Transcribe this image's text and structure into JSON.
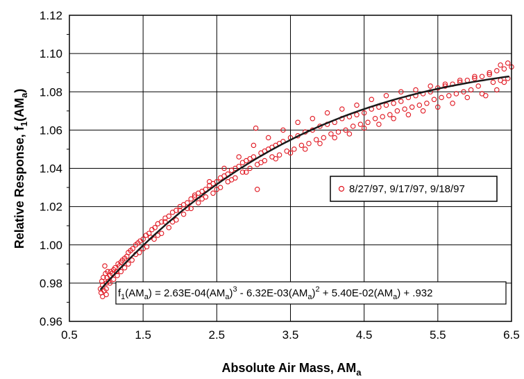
{
  "chart_data": {
    "type": "scatter",
    "xlabel": "Absolute Air Mass, AM",
    "xlabel_sub": "a",
    "ylabel": "Relative Response, f",
    "ylabel_sub1": "1",
    "ylabel_paren": "(AM",
    "ylabel_sub2": "a",
    "ylabel_close": ")",
    "xlim": [
      0.5,
      6.5
    ],
    "ylim": [
      0.96,
      1.12
    ],
    "xticks": [
      "0.5",
      "1.5",
      "2.5",
      "3.5",
      "4.5",
      "5.5",
      "6.5"
    ],
    "yticks": [
      "0.96",
      "0.98",
      "1.00",
      "1.02",
      "1.04",
      "1.06",
      "1.08",
      "1.10",
      "1.12"
    ],
    "grid": true,
    "legend": {
      "placement": "right",
      "label": "8/27/97, 9/17/97, 9/18/97",
      "marker_color": "#e0141e"
    },
    "fit": {
      "coefficients": [
        0.000263,
        -0.00632,
        0.054,
        0.932
      ],
      "equation": {
        "p1": "f",
        "s1": "1",
        "p2": "(AM",
        "s2": "a",
        "p3": ") = 2.63E-04(AM",
        "s3": "a",
        "p4": ")",
        "e1": "3",
        "p5": " - 6.32E-03(AM",
        "s4": "a",
        "p6": ")",
        "e2": "2",
        "p7": " + 5.40E-02(AM",
        "s5": "a",
        "p8": ") + .932"
      },
      "color": "#1a1a1a"
    },
    "series": [
      {
        "name": "8/27/97, 9/17/97, 9/18/97",
        "marker": "open-circle",
        "color": "#e0141e",
        "points": [
          [
            0.92,
            0.977
          ],
          [
            0.93,
            0.975
          ],
          [
            0.94,
            0.981
          ],
          [
            0.95,
            0.979
          ],
          [
            0.96,
            0.983
          ],
          [
            0.97,
            0.976
          ],
          [
            0.98,
            0.989
          ],
          [
            0.99,
            0.985
          ],
          [
            1.0,
            0.98
          ],
          [
            1.0,
            0.974
          ],
          [
            1.01,
            0.983
          ],
          [
            1.02,
            0.986
          ],
          [
            1.03,
            0.981
          ],
          [
            1.05,
            0.984
          ],
          [
            1.06,
            0.986
          ],
          [
            1.08,
            0.985
          ],
          [
            1.1,
            0.987
          ],
          [
            1.12,
            0.988
          ],
          [
            1.14,
            0.986
          ],
          [
            1.16,
            0.99
          ],
          [
            1.18,
            0.989
          ],
          [
            1.2,
            0.991
          ],
          [
            1.22,
            0.992
          ],
          [
            1.25,
            0.993
          ],
          [
            1.28,
            0.994
          ],
          [
            1.3,
            0.996
          ],
          [
            1.33,
            0.997
          ],
          [
            1.36,
            0.998
          ],
          [
            1.4,
            1.0
          ],
          [
            1.43,
            1.001
          ],
          [
            1.46,
            1.002
          ],
          [
            1.5,
            1.003
          ],
          [
            1.54,
            1.005
          ],
          [
            1.58,
            1.006
          ],
          [
            1.62,
            1.008
          ],
          [
            1.66,
            1.009
          ],
          [
            1.7,
            1.011
          ],
          [
            1.75,
            1.012
          ],
          [
            1.8,
            1.014
          ],
          [
            1.85,
            1.015
          ],
          [
            1.9,
            1.017
          ],
          [
            1.95,
            1.018
          ],
          [
            2.0,
            1.02
          ],
          [
            2.05,
            1.021
          ],
          [
            2.1,
            1.022
          ],
          [
            2.15,
            1.024
          ],
          [
            2.2,
            1.025
          ],
          [
            2.25,
            1.027
          ],
          [
            2.3,
            1.028
          ],
          [
            2.35,
            1.029
          ],
          [
            2.4,
            1.031
          ],
          [
            2.45,
            1.032
          ],
          [
            2.5,
            1.033
          ],
          [
            2.55,
            1.035
          ],
          [
            2.6,
            1.036
          ],
          [
            2.65,
            1.037
          ],
          [
            2.7,
            1.039
          ],
          [
            2.75,
            1.04
          ],
          [
            2.8,
            1.041
          ],
          [
            2.85,
            1.043
          ],
          [
            2.9,
            1.044
          ],
          [
            2.95,
            1.045
          ],
          [
            3.0,
            1.046
          ],
          [
            3.03,
            1.061
          ],
          [
            3.05,
            1.029
          ],
          [
            3.1,
            1.048
          ],
          [
            3.15,
            1.049
          ],
          [
            3.2,
            1.05
          ],
          [
            3.25,
            1.051
          ],
          [
            3.3,
            1.052
          ],
          [
            3.35,
            1.053
          ],
          [
            3.4,
            1.054
          ],
          [
            3.5,
            1.056
          ],
          [
            3.6,
            1.057
          ],
          [
            3.7,
            1.059
          ],
          [
            3.8,
            1.06
          ],
          [
            3.9,
            1.062
          ],
          [
            4.0,
            1.063
          ],
          [
            4.1,
            1.064
          ],
          [
            4.2,
            1.066
          ],
          [
            4.3,
            1.067
          ],
          [
            4.4,
            1.068
          ],
          [
            4.5,
            1.069
          ],
          [
            4.6,
            1.071
          ],
          [
            4.7,
            1.072
          ],
          [
            4.8,
            1.073
          ],
          [
            4.9,
            1.074
          ],
          [
            5.0,
            1.075
          ],
          [
            5.1,
            1.077
          ],
          [
            5.2,
            1.078
          ],
          [
            5.3,
            1.079
          ],
          [
            5.4,
            1.08
          ],
          [
            5.5,
            1.082
          ],
          [
            5.6,
            1.083
          ],
          [
            5.7,
            1.084
          ],
          [
            5.8,
            1.085
          ],
          [
            5.9,
            1.086
          ],
          [
            6.0,
            1.087
          ],
          [
            6.1,
            1.088
          ],
          [
            6.2,
            1.089
          ],
          [
            6.3,
            1.091
          ],
          [
            6.35,
            1.094
          ],
          [
            6.4,
            1.085
          ],
          [
            6.45,
            1.095
          ],
          [
            6.5,
            1.093
          ],
          [
            1.05,
            0.98
          ],
          [
            1.15,
            0.984
          ],
          [
            1.25,
            0.988
          ],
          [
            1.35,
            0.992
          ],
          [
            1.45,
            0.996
          ],
          [
            1.55,
            0.999
          ],
          [
            1.65,
            1.003
          ],
          [
            1.75,
            1.006
          ],
          [
            1.85,
            1.009
          ],
          [
            1.95,
            1.013
          ],
          [
            2.05,
            1.016
          ],
          [
            2.15,
            1.019
          ],
          [
            2.25,
            1.022
          ],
          [
            2.35,
            1.025
          ],
          [
            2.45,
            1.027
          ],
          [
            2.55,
            1.03
          ],
          [
            2.65,
            1.033
          ],
          [
            2.75,
            1.035
          ],
          [
            2.85,
            1.038
          ],
          [
            2.95,
            1.04
          ],
          [
            3.05,
            1.042
          ],
          [
            3.15,
            1.044
          ],
          [
            3.25,
            1.046
          ],
          [
            3.35,
            1.047
          ],
          [
            3.45,
            1.049
          ],
          [
            3.55,
            1.05
          ],
          [
            3.65,
            1.052
          ],
          [
            3.75,
            1.053
          ],
          [
            3.85,
            1.055
          ],
          [
            3.95,
            1.056
          ],
          [
            4.05,
            1.058
          ],
          [
            4.15,
            1.059
          ],
          [
            4.25,
            1.06
          ],
          [
            4.35,
            1.062
          ],
          [
            4.45,
            1.063
          ],
          [
            4.55,
            1.064
          ],
          [
            4.65,
            1.066
          ],
          [
            4.75,
            1.067
          ],
          [
            4.85,
            1.068
          ],
          [
            4.95,
            1.07
          ],
          [
            5.05,
            1.071
          ],
          [
            5.15,
            1.072
          ],
          [
            5.25,
            1.073
          ],
          [
            5.35,
            1.074
          ],
          [
            5.45,
            1.076
          ],
          [
            5.55,
            1.077
          ],
          [
            5.65,
            1.078
          ],
          [
            5.75,
            1.079
          ],
          [
            5.85,
            1.08
          ],
          [
            5.95,
            1.081
          ],
          [
            6.05,
            1.083
          ],
          [
            6.15,
            1.078
          ],
          [
            6.25,
            1.085
          ],
          [
            6.35,
            1.086
          ],
          [
            6.45,
            1.087
          ],
          [
            1.2,
            0.986
          ],
          [
            1.4,
            0.995
          ],
          [
            1.6,
            1.004
          ],
          [
            1.8,
            1.012
          ],
          [
            2.0,
            1.018
          ],
          [
            2.2,
            1.026
          ],
          [
            2.4,
            1.033
          ],
          [
            2.6,
            1.04
          ],
          [
            2.8,
            1.046
          ],
          [
            3.0,
            1.052
          ],
          [
            3.2,
            1.056
          ],
          [
            3.4,
            1.06
          ],
          [
            3.6,
            1.064
          ],
          [
            3.8,
            1.066
          ],
          [
            4.0,
            1.069
          ],
          [
            4.2,
            1.071
          ],
          [
            4.4,
            1.073
          ],
          [
            4.6,
            1.076
          ],
          [
            4.8,
            1.078
          ],
          [
            5.0,
            1.08
          ],
          [
            5.2,
            1.081
          ],
          [
            5.4,
            1.083
          ],
          [
            5.6,
            1.084
          ],
          [
            5.8,
            1.086
          ],
          [
            6.0,
            1.088
          ],
          [
            6.2,
            1.09
          ],
          [
            6.4,
            1.092
          ],
          [
            0.95,
            0.973
          ],
          [
            1.0,
            0.977
          ],
          [
            1.1,
            0.982
          ],
          [
            1.3,
            0.99
          ],
          [
            1.5,
            0.998
          ],
          [
            1.7,
            1.005
          ],
          [
            1.9,
            1.012
          ],
          [
            2.1,
            1.019
          ],
          [
            2.3,
            1.024
          ],
          [
            2.5,
            1.029
          ],
          [
            2.7,
            1.034
          ],
          [
            2.9,
            1.038
          ],
          [
            3.1,
            1.043
          ],
          [
            3.3,
            1.045
          ],
          [
            3.5,
            1.048
          ],
          [
            3.7,
            1.05
          ],
          [
            3.9,
            1.053
          ],
          [
            4.1,
            1.056
          ],
          [
            4.3,
            1.058
          ],
          [
            4.5,
            1.061
          ],
          [
            4.7,
            1.063
          ],
          [
            4.9,
            1.066
          ],
          [
            5.1,
            1.068
          ],
          [
            5.3,
            1.07
          ],
          [
            5.5,
            1.072
          ],
          [
            5.7,
            1.074
          ],
          [
            5.9,
            1.077
          ],
          [
            6.1,
            1.079
          ],
          [
            6.3,
            1.081
          ]
        ]
      }
    ]
  }
}
